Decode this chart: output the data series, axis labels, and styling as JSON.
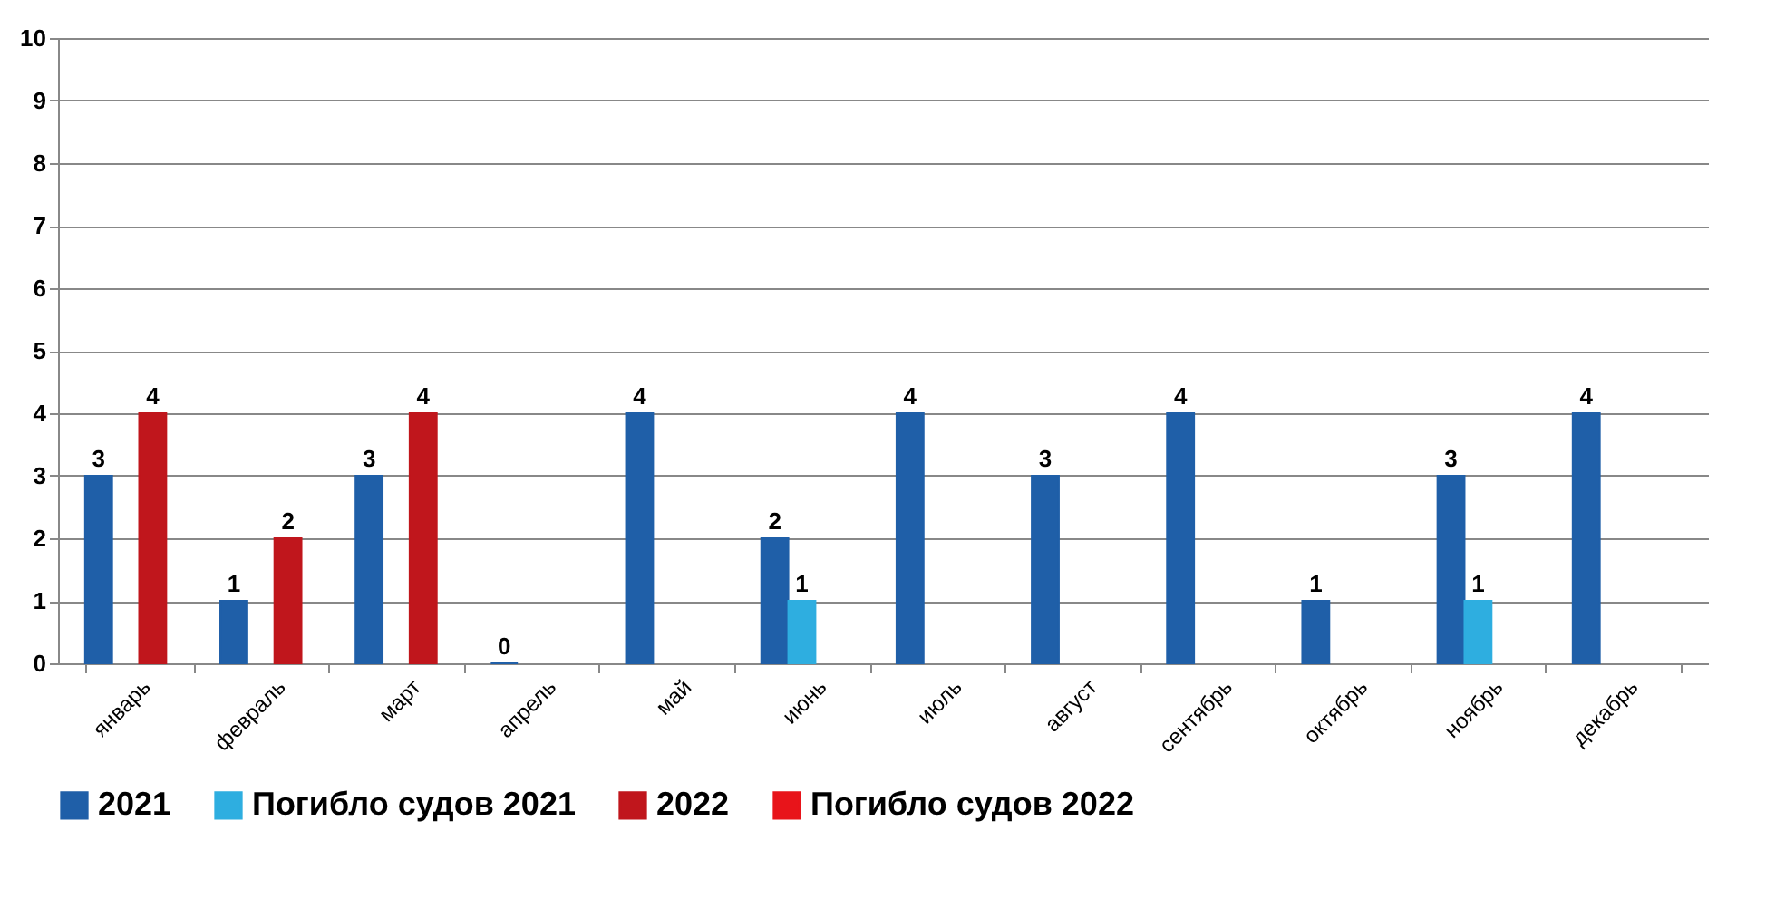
{
  "chart_data": {
    "type": "bar",
    "categories": [
      "январь",
      "февраль",
      "март",
      "апрель",
      "май",
      "июнь",
      "июль",
      "август",
      "сентябрь",
      "октябрь",
      "ноябрь",
      "декабрь"
    ],
    "series": [
      {
        "name": "2021",
        "color": "#1f5fa8",
        "values": [
          3,
          1,
          3,
          0,
          4,
          2,
          4,
          3,
          4,
          1,
          3,
          4
        ]
      },
      {
        "name": "Погибло судов 2021",
        "color": "#2eaee0",
        "values": [
          null,
          null,
          null,
          null,
          null,
          1,
          null,
          null,
          null,
          null,
          1,
          null
        ]
      },
      {
        "name": "2022",
        "color": "#c0161c",
        "values": [
          4,
          2,
          4,
          null,
          null,
          null,
          null,
          null,
          null,
          null,
          null,
          null
        ]
      },
      {
        "name": "Погибло судов 2022",
        "color": "#e8141a",
        "values": [
          null,
          null,
          null,
          null,
          null,
          null,
          null,
          null,
          null,
          null,
          null,
          null
        ]
      }
    ],
    "ylim": [
      0,
      10
    ],
    "yticks": [
      0,
      1,
      2,
      3,
      4,
      5,
      6,
      7,
      8,
      9,
      10
    ],
    "grid": "y",
    "legend": "bottom",
    "data_labels": true
  }
}
